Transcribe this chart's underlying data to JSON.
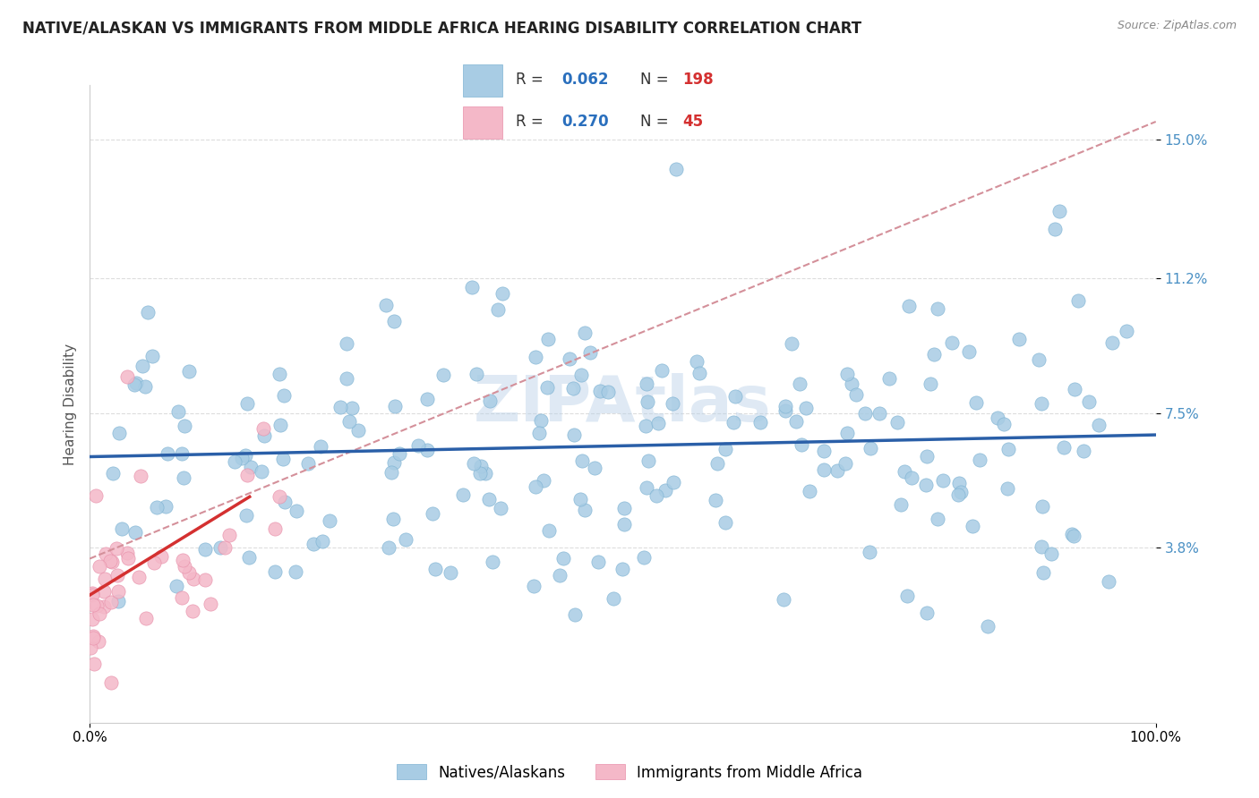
{
  "title": "NATIVE/ALASKAN VS IMMIGRANTS FROM MIDDLE AFRICA HEARING DISABILITY CORRELATION CHART",
  "source": "Source: ZipAtlas.com",
  "ylabel": "Hearing Disability",
  "xlim": [
    0.0,
    100.0
  ],
  "ylim": [
    -1.0,
    16.5
  ],
  "yticks": [
    3.8,
    7.5,
    11.2,
    15.0
  ],
  "ytick_labels": [
    "3.8%",
    "7.5%",
    "11.2%",
    "15.0%"
  ],
  "xticks": [
    0.0,
    100.0
  ],
  "xtick_labels": [
    "0.0%",
    "100.0%"
  ],
  "blue_R": 0.062,
  "blue_N": 198,
  "pink_R": 0.27,
  "pink_N": 45,
  "blue_color": "#a8cce4",
  "pink_color": "#f4b8c8",
  "blue_scatter_edge": "#7fb3d3",
  "pink_scatter_edge": "#e890aa",
  "blue_line_color": "#2a5fa8",
  "pink_line_color": "#d43030",
  "dashed_line_color": "#d4909a",
  "watermark": "ZIPAtlas",
  "legend_label_blue": "Natives/Alaskans",
  "legend_label_pink": "Immigrants from Middle Africa",
  "blue_mean_y": 6.5,
  "blue_line_start_y": 6.3,
  "blue_line_end_y": 6.9,
  "pink_line_start_x": 0.0,
  "pink_line_start_y": 2.5,
  "pink_line_end_x": 15.0,
  "pink_line_end_y": 5.2,
  "dashed_start_x": 0.0,
  "dashed_start_y": 3.5,
  "dashed_end_x": 100.0,
  "dashed_end_y": 15.5,
  "title_fontsize": 12,
  "axis_label_fontsize": 11,
  "tick_fontsize": 11,
  "legend_fontsize": 12,
  "background_color": "#ffffff",
  "grid_color": "#dddddd",
  "tick_color": "#4a90c4"
}
